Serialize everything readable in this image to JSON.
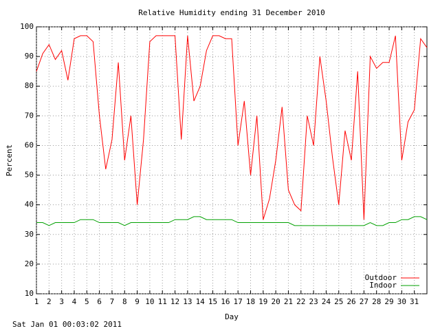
{
  "chart_data": {
    "type": "line",
    "title": "Relative Humidity ending 31 December 2010",
    "x_label": "Day",
    "y_label": "Percent",
    "timestamp": "Sat Jan 01 00:03:02 2011",
    "x": [
      1,
      1.5,
      2,
      2.5,
      3,
      3.5,
      4,
      4.5,
      5,
      5.5,
      6,
      6.5,
      7,
      7.5,
      8,
      8.5,
      9,
      9.5,
      10,
      10.5,
      11,
      11.5,
      12,
      12.5,
      13,
      13.5,
      14,
      14.5,
      15,
      15.5,
      16,
      16.5,
      17,
      17.5,
      18,
      18.5,
      19,
      19.5,
      20,
      20.5,
      21,
      21.5,
      22,
      22.5,
      23,
      23.5,
      24,
      24.5,
      25,
      25.5,
      26,
      26.5,
      27,
      27.5,
      28,
      28.5,
      29,
      29.5,
      30,
      30.5,
      31,
      31.5,
      32
    ],
    "series": [
      {
        "name": "Outdoor",
        "color": "#ff0000",
        "values": [
          85,
          91,
          94,
          89,
          92,
          82,
          96,
          97,
          97,
          95,
          70,
          52,
          62,
          88,
          55,
          70,
          40,
          62,
          95,
          97,
          97,
          97,
          97,
          62,
          97,
          75,
          80,
          92,
          97,
          97,
          96,
          96,
          60,
          75,
          50,
          70,
          35,
          42,
          55,
          73,
          45,
          40,
          38,
          70,
          60,
          90,
          75,
          56,
          40,
          65,
          55,
          85,
          35,
          90,
          86,
          88,
          88,
          97,
          55,
          68,
          72,
          96,
          93
        ]
      },
      {
        "name": "Indoor",
        "color": "#00a000",
        "values": [
          34,
          34,
          33,
          34,
          34,
          34,
          34,
          35,
          35,
          35,
          34,
          34,
          34,
          34,
          33,
          34,
          34,
          34,
          34,
          34,
          34,
          34,
          35,
          35,
          35,
          36,
          36,
          35,
          35,
          35,
          35,
          35,
          34,
          34,
          34,
          34,
          34,
          34,
          34,
          34,
          34,
          33,
          33,
          33,
          33,
          33,
          33,
          33,
          33,
          33,
          33,
          33,
          33,
          34,
          33,
          33,
          34,
          34,
          35,
          35,
          36,
          36,
          35
        ]
      }
    ],
    "xlim": [
      1,
      32
    ],
    "xticks": [
      1,
      2,
      3,
      4,
      5,
      6,
      7,
      8,
      9,
      10,
      11,
      12,
      13,
      14,
      15,
      16,
      17,
      18,
      19,
      20,
      21,
      22,
      23,
      24,
      25,
      26,
      27,
      28,
      29,
      30,
      31
    ],
    "ylim": [
      10,
      100
    ],
    "yticks": [
      10,
      20,
      30,
      40,
      50,
      60,
      70,
      80,
      90,
      100
    ],
    "grid": true,
    "legend": "bottom-right"
  }
}
